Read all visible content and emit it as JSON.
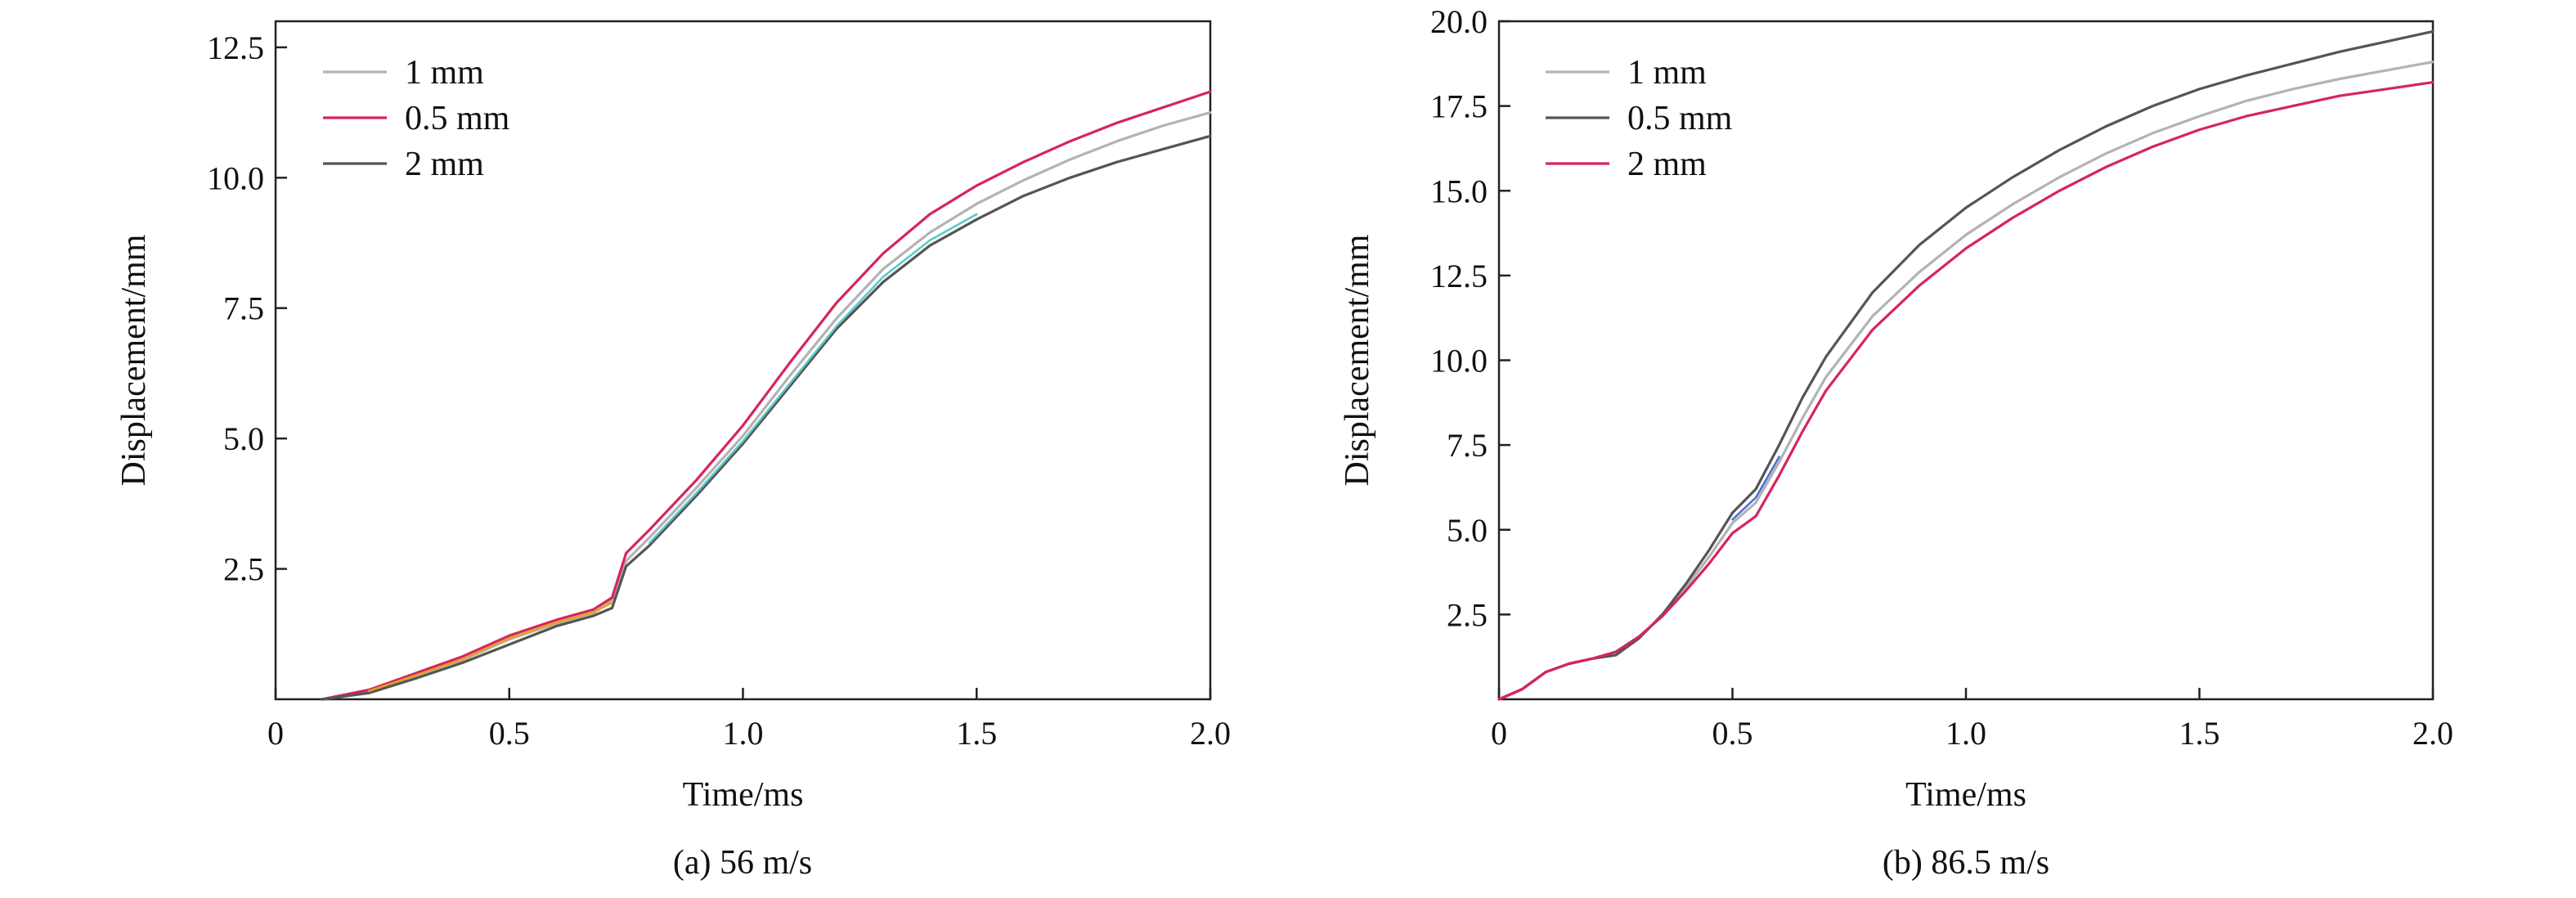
{
  "chart_data": [
    {
      "type": "line",
      "caption": "(a) 56 m/s",
      "xlabel": "Time/ms",
      "ylabel": "Displacement/mm",
      "xlim": [
        0,
        2.0
      ],
      "ylim": [
        0,
        13.0
      ],
      "x_ticks": [
        "0",
        "0.5",
        "1.0",
        "1.5",
        "2.0"
      ],
      "y_ticks": [
        "2.5",
        "5.0",
        "7.5",
        "10.0",
        "12.5"
      ],
      "legend_position": "top-left",
      "series": [
        {
          "name": "1 mm",
          "color": "#b3b3b3",
          "x": [
            0.1,
            0.2,
            0.3,
            0.4,
            0.5,
            0.6,
            0.68,
            0.72,
            0.75,
            0.8,
            0.9,
            1.0,
            1.1,
            1.2,
            1.3,
            1.4,
            1.5,
            1.6,
            1.7,
            1.8,
            1.9,
            2.0
          ],
          "y": [
            0.0,
            0.15,
            0.45,
            0.75,
            1.15,
            1.45,
            1.65,
            1.9,
            2.65,
            3.1,
            4.05,
            5.05,
            6.2,
            7.3,
            8.25,
            8.95,
            9.5,
            9.95,
            10.35,
            10.7,
            11.0,
            11.25
          ]
        },
        {
          "name": "0.5 mm",
          "color": "#d6245f",
          "x": [
            0.1,
            0.2,
            0.3,
            0.4,
            0.5,
            0.6,
            0.68,
            0.72,
            0.75,
            0.8,
            0.9,
            1.0,
            1.1,
            1.2,
            1.3,
            1.4,
            1.5,
            1.6,
            1.7,
            1.8,
            1.9,
            2.0
          ],
          "y": [
            0.0,
            0.18,
            0.5,
            0.82,
            1.22,
            1.52,
            1.72,
            1.95,
            2.8,
            3.25,
            4.2,
            5.25,
            6.45,
            7.6,
            8.55,
            9.3,
            9.85,
            10.3,
            10.7,
            11.05,
            11.35,
            11.65
          ]
        },
        {
          "name": "2 mm",
          "color": "#555555",
          "x": [
            0.1,
            0.2,
            0.3,
            0.4,
            0.5,
            0.6,
            0.68,
            0.72,
            0.75,
            0.8,
            0.9,
            1.0,
            1.1,
            1.2,
            1.3,
            1.4,
            1.5,
            1.6,
            1.7,
            1.8,
            1.9,
            2.0
          ],
          "y": [
            0.0,
            0.12,
            0.4,
            0.7,
            1.05,
            1.4,
            1.6,
            1.75,
            2.55,
            2.95,
            3.9,
            4.9,
            6.0,
            7.1,
            8.0,
            8.7,
            9.2,
            9.65,
            10.0,
            10.3,
            10.55,
            10.8
          ]
        },
        {
          "color": "#5ac8c8",
          "x": [
            0.8,
            0.9,
            1.0,
            1.1,
            1.2,
            1.3,
            1.4,
            1.5
          ],
          "y": [
            3.0,
            3.95,
            4.95,
            6.05,
            7.15,
            8.1,
            8.8,
            9.3
          ]
        },
        {
          "color": "#e6a020",
          "x": [
            0.2,
            0.3,
            0.4,
            0.5,
            0.6,
            0.68,
            0.72
          ],
          "y": [
            0.16,
            0.46,
            0.77,
            1.17,
            1.47,
            1.67,
            1.85
          ]
        }
      ]
    },
    {
      "type": "line",
      "caption": "(b) 86.5 m/s",
      "xlabel": "Time/ms",
      "ylabel": "Displacement/mm",
      "xlim": [
        0,
        2.0
      ],
      "ylim": [
        0,
        20.0
      ],
      "x_ticks": [
        "0",
        "0.5",
        "1.0",
        "1.5",
        "2.0"
      ],
      "y_ticks": [
        "2.5",
        "5.0",
        "7.5",
        "10.0",
        "12.5",
        "15.0",
        "17.5",
        "20.0"
      ],
      "legend_position": "top-left",
      "series": [
        {
          "name": "1 mm",
          "color": "#b3b3b3",
          "x": [
            0.0,
            0.05,
            0.1,
            0.15,
            0.2,
            0.25,
            0.3,
            0.35,
            0.4,
            0.45,
            0.5,
            0.55,
            0.6,
            0.65,
            0.7,
            0.8,
            0.9,
            1.0,
            1.1,
            1.2,
            1.3,
            1.4,
            1.5,
            1.6,
            1.7,
            1.8,
            1.9,
            2.0
          ],
          "y": [
            0.0,
            0.3,
            0.8,
            1.05,
            1.2,
            1.35,
            1.8,
            2.5,
            3.3,
            4.2,
            5.2,
            5.8,
            7.0,
            8.3,
            9.5,
            11.3,
            12.6,
            13.7,
            14.6,
            15.4,
            16.1,
            16.7,
            17.2,
            17.65,
            18.0,
            18.3,
            18.55,
            18.8
          ]
        },
        {
          "name": "0.5 mm",
          "color": "#555555",
          "x": [
            0.0,
            0.05,
            0.1,
            0.15,
            0.2,
            0.25,
            0.3,
            0.35,
            0.4,
            0.45,
            0.5,
            0.55,
            0.6,
            0.65,
            0.7,
            0.8,
            0.9,
            1.0,
            1.1,
            1.2,
            1.3,
            1.4,
            1.5,
            1.6,
            1.7,
            1.8,
            1.9,
            2.0
          ],
          "y": [
            0.0,
            0.3,
            0.8,
            1.05,
            1.2,
            1.3,
            1.8,
            2.5,
            3.4,
            4.4,
            5.5,
            6.2,
            7.5,
            8.9,
            10.1,
            12.0,
            13.4,
            14.5,
            15.4,
            16.2,
            16.9,
            17.5,
            18.0,
            18.4,
            18.75,
            19.1,
            19.4,
            19.7
          ]
        },
        {
          "name": "2 mm",
          "color": "#d6245f",
          "x": [
            0.0,
            0.05,
            0.1,
            0.15,
            0.2,
            0.25,
            0.3,
            0.35,
            0.4,
            0.45,
            0.5,
            0.55,
            0.6,
            0.65,
            0.7,
            0.8,
            0.9,
            1.0,
            1.1,
            1.2,
            1.3,
            1.4,
            1.5,
            1.6,
            1.7,
            1.8,
            1.9,
            2.0
          ],
          "y": [
            0.0,
            0.3,
            0.8,
            1.05,
            1.2,
            1.4,
            1.85,
            2.45,
            3.2,
            4.0,
            4.9,
            5.4,
            6.6,
            7.9,
            9.1,
            10.9,
            12.2,
            13.3,
            14.2,
            15.0,
            15.7,
            16.3,
            16.8,
            17.2,
            17.5,
            17.8,
            18.0,
            18.2
          ]
        },
        {
          "color": "#4a6fd0",
          "x": [
            0.5,
            0.55,
            0.6
          ],
          "y": [
            5.3,
            5.95,
            7.15
          ]
        }
      ]
    }
  ]
}
